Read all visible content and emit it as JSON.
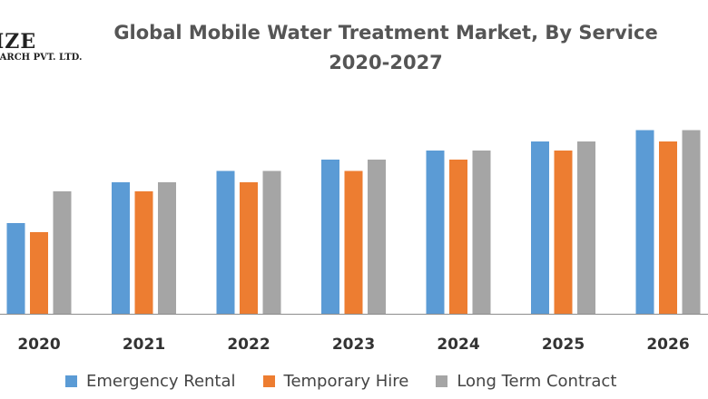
{
  "logo": {
    "main": "IZE",
    "sub": "EARCH PVT. LTD."
  },
  "title": {
    "line1": "Global Mobile Water Treatment Market, By Service",
    "line2": "2020-2027"
  },
  "colors": {
    "emergency": "#5B9BD5",
    "temporary": "#ED7D31",
    "longterm": "#A5A5A5",
    "axis": "#8c8c8c",
    "tick_text": "#333333"
  },
  "chart_data": {
    "type": "bar",
    "title": "Global Mobile Water Treatment Market, By Service 2020-2027",
    "xlabel": "",
    "ylabel": "",
    "categories": [
      "2020",
      "2021",
      "2022",
      "2023",
      "2024",
      "2025",
      "2026"
    ],
    "series": [
      {
        "name": "Emergency Rental",
        "values": [
          4.0,
          5.8,
          6.3,
          6.8,
          7.2,
          7.6,
          8.1
        ]
      },
      {
        "name": "Temporary Hire",
        "values": [
          3.6,
          5.4,
          5.8,
          6.3,
          6.8,
          7.2,
          7.6
        ]
      },
      {
        "name": "Long Term Contract",
        "values": [
          5.4,
          5.8,
          6.3,
          6.8,
          7.2,
          7.6,
          8.1
        ]
      }
    ],
    "ylim": [
      0,
      10
    ],
    "legend_position": "bottom",
    "grid": false
  }
}
